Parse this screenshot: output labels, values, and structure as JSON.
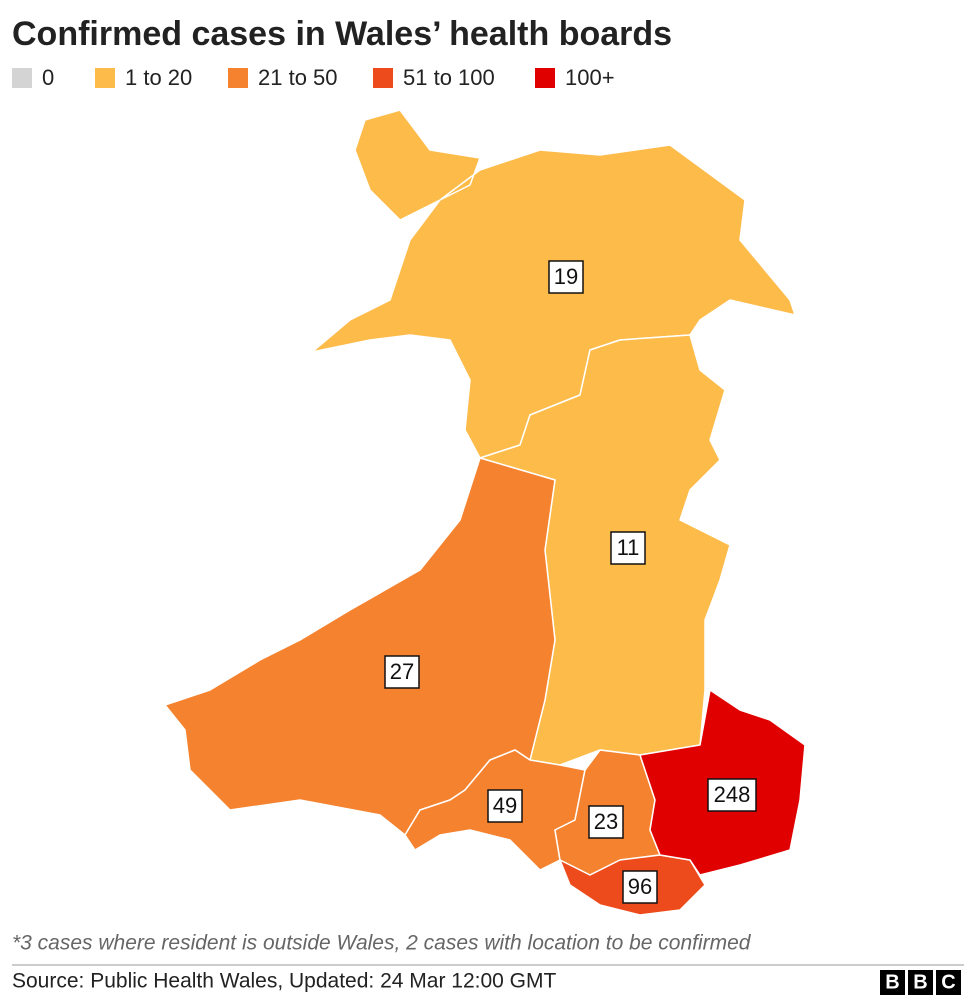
{
  "title": "Confirmed cases in Wales’ health boards",
  "legend": [
    {
      "label": "0",
      "color": "#d4d4d4"
    },
    {
      "label": "1 to 20",
      "color": "#fdbb4a"
    },
    {
      "label": "21 to 50",
      "color": "#f5822e"
    },
    {
      "label": "51 to 100",
      "color": "#ee4b1d"
    },
    {
      "label": "100+",
      "color": "#e00000"
    }
  ],
  "regions": [
    {
      "label": "19",
      "color": "#fdbb4a"
    },
    {
      "label": "11",
      "color": "#fdbb4a"
    },
    {
      "label": "27",
      "color": "#f5822e"
    },
    {
      "label": "49",
      "color": "#f5822e"
    },
    {
      "label": "23",
      "color": "#f5822e"
    },
    {
      "label": "96",
      "color": "#ee4b1d"
    },
    {
      "label": "248",
      "color": "#e00000"
    }
  ],
  "footnote": "*3 cases where resident is outside Wales, 2 cases with location to be confirmed",
  "source": "Source: Public Health Wales, Updated: 24 Mar 12:00 GMT",
  "logo": [
    "B",
    "B",
    "C"
  ]
}
